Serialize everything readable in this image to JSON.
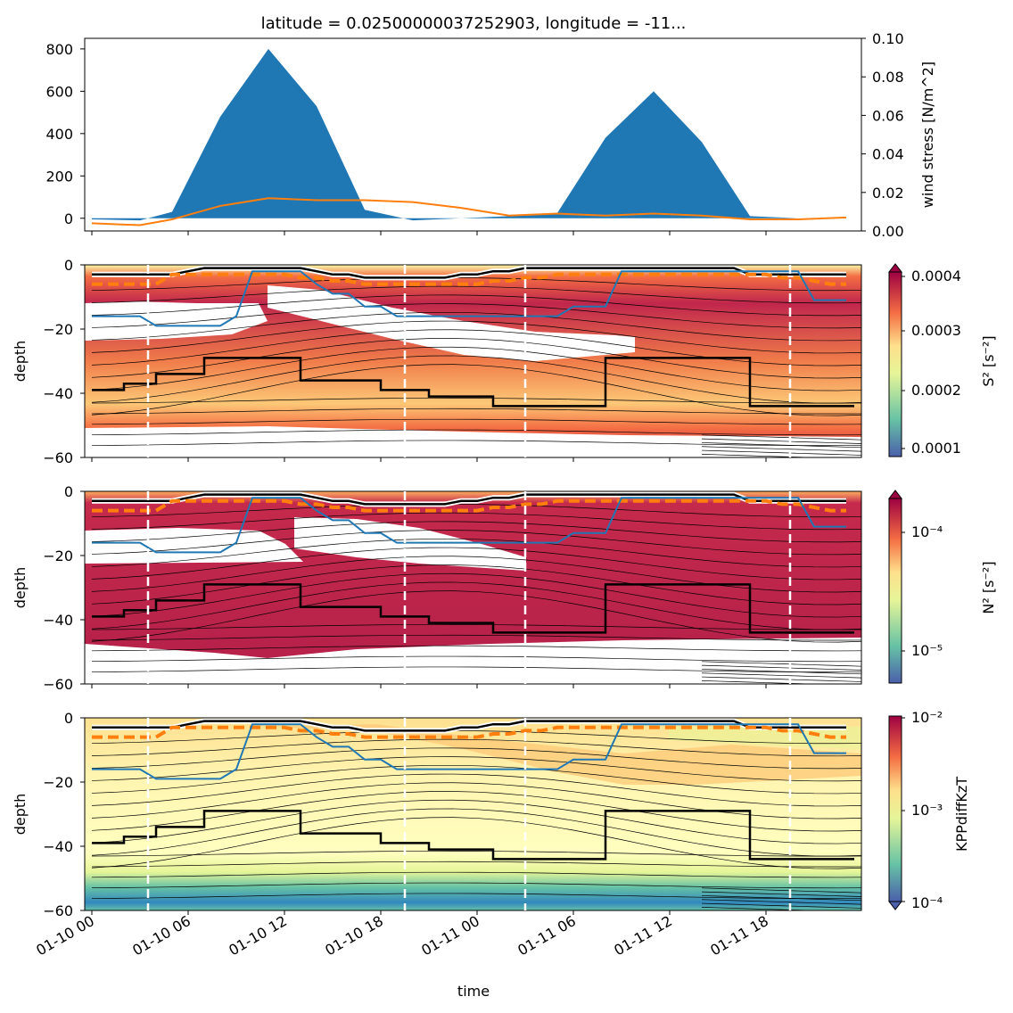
{
  "figure": {
    "title": "latitude = 0.02500000037252903, longitude = -11...",
    "xlabel": "time",
    "xticks": [
      "01-10 00",
      "01-10 06",
      "01-10 12",
      "01-10 18",
      "01-11 00",
      "01-11 06",
      "01-11 12",
      "01-11 18"
    ],
    "colors": {
      "area": "#1f77b4",
      "stress_line": "#ff7f0e",
      "mld_line": "#000000",
      "eq_line": "#1f77b4",
      "dashed_line": "#ff7f0e",
      "vertical_markers": "#ffffff"
    }
  },
  "chart_data": [
    {
      "type": "area",
      "panel": "wind",
      "x_hours": [
        0,
        3,
        5,
        8,
        11,
        14,
        17,
        20,
        23,
        26,
        29,
        32,
        35,
        38,
        41,
        44,
        47
      ],
      "area_values": [
        -5,
        -10,
        30,
        480,
        800,
        530,
        40,
        -10,
        0,
        10,
        25,
        380,
        600,
        360,
        10,
        0,
        0
      ],
      "yticks": [
        0,
        200,
        400,
        600,
        800
      ],
      "ylim": [
        -60,
        850
      ],
      "right_axis": {
        "label": "wind stress [N/m^2]",
        "ticks": [
          "0.00",
          "0.02",
          "0.04",
          "0.06",
          "0.08",
          "0.10"
        ],
        "ylim": [
          0,
          0.1
        ],
        "line_values": [
          0.004,
          0.003,
          0.006,
          0.013,
          0.017,
          0.016,
          0.016,
          0.015,
          0.012,
          0.008,
          0.009,
          0.008,
          0.009,
          0.008,
          0.006,
          0.006,
          0.007
        ]
      }
    },
    {
      "type": "heatmap",
      "panel": "S2",
      "ylabel": "depth",
      "yticks": [
        0,
        -20,
        -40,
        -60
      ],
      "ylim": [
        -60,
        0
      ],
      "colorbar_label": "S² [s⁻²]",
      "colorbar_ticks": [
        "0.0004",
        "0.0003",
        "0.0002",
        "0.0001"
      ]
    },
    {
      "type": "heatmap",
      "panel": "N2",
      "ylabel": "depth",
      "yticks": [
        0,
        -20,
        -40,
        -60
      ],
      "ylim": [
        -60,
        0
      ],
      "colorbar_label": "N² [s⁻²]",
      "colorbar_ticks": [
        "10⁻⁴",
        "10⁻⁵"
      ]
    },
    {
      "type": "heatmap",
      "panel": "KPP",
      "ylabel": "depth",
      "yticks": [
        0,
        -20,
        -40,
        -60
      ],
      "ylim": [
        -60,
        0
      ],
      "colorbar_label": "KPPdiffKzT",
      "colorbar_ticks": [
        "10⁻²",
        "10⁻³",
        "10⁻⁴"
      ]
    }
  ],
  "overlay_lines": {
    "x_hours": [
      0,
      1,
      2,
      3,
      4,
      5,
      6,
      7,
      8,
      9,
      10,
      11,
      12,
      13,
      14,
      15,
      16,
      17,
      18,
      19,
      20,
      21,
      22,
      23,
      24,
      25,
      26,
      27,
      28,
      29,
      30,
      31,
      32,
      33,
      34,
      35,
      36,
      37,
      38,
      39,
      40,
      41,
      42,
      43,
      44,
      45,
      46,
      47
    ],
    "mld_depth": [
      -39,
      -39,
      -37,
      -37,
      -34,
      -34,
      -34,
      -29,
      -29,
      -29,
      -29,
      -29,
      -29,
      -36,
      -36,
      -36,
      -36,
      -36,
      -39,
      -39,
      -39,
      -41,
      -41,
      -41,
      -41,
      -44,
      -44,
      -44,
      -44,
      -44,
      -44,
      -44,
      -29,
      -29,
      -29,
      -29,
      -29,
      -29,
      -29,
      -29,
      -29,
      -44,
      -44,
      -44,
      -44,
      -44,
      -44,
      -44
    ],
    "blue_depth": [
      -16,
      -16,
      -16,
      -16,
      -19,
      -19,
      -19,
      -19,
      -19,
      -16,
      -2,
      -2,
      -2,
      -2,
      -6,
      -9,
      -9,
      -13,
      -13,
      -16,
      -16,
      -16,
      -16,
      -16,
      -16,
      -16,
      -16,
      -16,
      -16,
      -16,
      -13,
      -13,
      -13,
      -2,
      -2,
      -2,
      -2,
      -2,
      -2,
      -2,
      -2,
      -2,
      -2,
      -2,
      -2,
      -11,
      -11,
      -11
    ],
    "surface_line": [
      -3,
      -3,
      -3,
      -3,
      -3,
      -3,
      -2,
      -1,
      -1,
      -1,
      -1,
      -1,
      -1,
      -1,
      -2,
      -3,
      -3,
      -4,
      -4,
      -4,
      -4,
      -4,
      -4,
      -3,
      -3,
      -2,
      -2,
      -1,
      -1,
      -1,
      -1,
      -1,
      -1,
      -1,
      -1,
      -1,
      -1,
      -1,
      -1,
      -1,
      -1,
      -3,
      -3,
      -3,
      -3,
      -3,
      -3,
      -3
    ],
    "dashed_depth": [
      -6,
      -6,
      -6,
      -6,
      -6,
      -3,
      -3,
      -3,
      -3,
      -3,
      -3,
      -3,
      -3,
      -4,
      -4,
      -5,
      -5,
      -6,
      -6,
      -6,
      -6,
      -6,
      -6,
      -6,
      -6,
      -5,
      -5,
      -4,
      -4,
      -3,
      -3,
      -3,
      -3,
      -3,
      -3,
      -3,
      -3,
      -3,
      -3,
      -3,
      -3,
      -3,
      -3,
      -4,
      -4,
      -5,
      -6,
      -6
    ],
    "vertical_markers_hours": [
      3.5,
      19.5,
      27,
      43.5
    ]
  }
}
